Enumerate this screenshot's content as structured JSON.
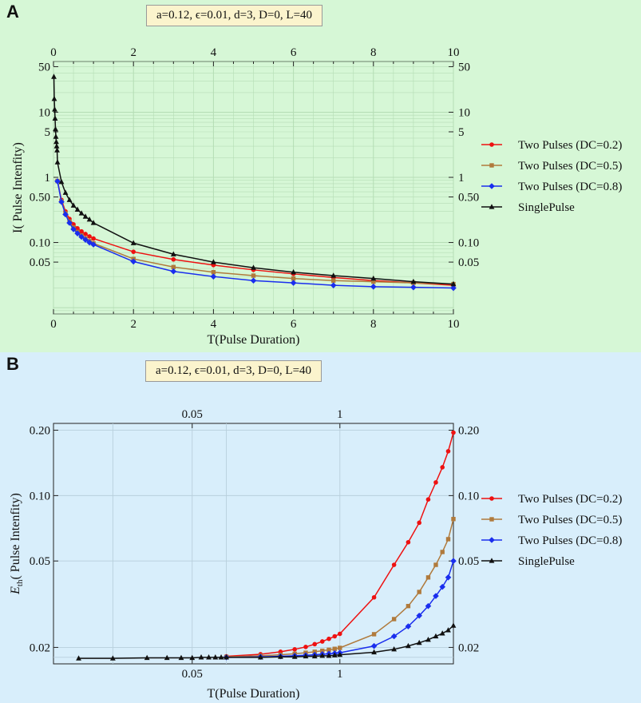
{
  "colors": {
    "red": "#ee1111",
    "brown": "#b07a3c",
    "blue": "#1a2eee",
    "black": "#111111",
    "bg_a": "#d6f7d6",
    "bg_b": "#d8eefb",
    "param_bg": "#fbf4cd"
  },
  "chart_data": [
    {
      "panel": "A",
      "type": "line",
      "params_label": "a=0.12, ϵ=0.01, d=3, D=0, L=40",
      "xlabel": "T(Pulse Duration)",
      "ylabel": "I( Pulse Intenfity)",
      "xscale": "linear",
      "yscale": "log",
      "xlim": [
        0,
        10
      ],
      "ylim": [
        0.008,
        60
      ],
      "xticks": [
        0,
        2,
        4,
        6,
        8,
        10
      ],
      "yticks": [
        0.05,
        0.1,
        0.5,
        1,
        5,
        10,
        50
      ],
      "ytick_labels": [
        "0.05",
        "0.10",
        "0.50",
        "1",
        "5",
        "10",
        "50"
      ],
      "grid": true,
      "legend_position": "right",
      "series": [
        {
          "name": "Two Pulses (DC=0.2)",
          "color_key": "red",
          "marker": "circle",
          "x": [
            0.1,
            0.2,
            0.3,
            0.4,
            0.5,
            0.6,
            0.7,
            0.8,
            0.9,
            1,
            2,
            3,
            4,
            5,
            6,
            7,
            8,
            9,
            10
          ],
          "y": [
            0.88,
            0.45,
            0.3,
            0.23,
            0.19,
            0.165,
            0.148,
            0.135,
            0.124,
            0.115,
            0.072,
            0.055,
            0.045,
            0.038,
            0.033,
            0.029,
            0.026,
            0.024,
            0.022
          ]
        },
        {
          "name": "Two Pulses (DC=0.5)",
          "color_key": "brown",
          "marker": "square",
          "x": [
            0.1,
            0.2,
            0.3,
            0.4,
            0.5,
            0.6,
            0.7,
            0.8,
            0.9,
            1,
            2,
            3,
            4,
            5,
            6,
            7,
            8,
            9,
            10
          ],
          "y": [
            0.88,
            0.43,
            0.28,
            0.21,
            0.17,
            0.145,
            0.128,
            0.115,
            0.105,
            0.097,
            0.056,
            0.042,
            0.035,
            0.031,
            0.028,
            0.026,
            0.025,
            0.024,
            0.023
          ]
        },
        {
          "name": "Two Pulses (DC=0.8)",
          "color_key": "blue",
          "marker": "diamond",
          "x": [
            0.1,
            0.2,
            0.3,
            0.4,
            0.5,
            0.6,
            0.7,
            0.8,
            0.9,
            1,
            2,
            3,
            4,
            5,
            6,
            7,
            8,
            9,
            10
          ],
          "y": [
            0.87,
            0.42,
            0.27,
            0.2,
            0.16,
            0.138,
            0.122,
            0.11,
            0.1,
            0.093,
            0.051,
            0.036,
            0.03,
            0.026,
            0.024,
            0.022,
            0.021,
            0.0205,
            0.02
          ]
        },
        {
          "name": "SinglePulse",
          "color_key": "black",
          "marker": "triangle",
          "x": [
            0.01,
            0.02,
            0.03,
            0.04,
            0.05,
            0.06,
            0.07,
            0.08,
            0.09,
            0.1,
            0.2,
            0.3,
            0.4,
            0.5,
            0.6,
            0.7,
            0.8,
            0.9,
            1,
            2,
            3,
            4,
            5,
            6,
            7,
            8,
            9,
            10
          ],
          "y": [
            35,
            16,
            11,
            8,
            5.5,
            4.2,
            3.5,
            3,
            2.6,
            1.7,
            0.85,
            0.58,
            0.45,
            0.37,
            0.32,
            0.28,
            0.25,
            0.225,
            0.2,
            0.098,
            0.066,
            0.05,
            0.041,
            0.035,
            0.031,
            0.028,
            0.025,
            0.023
          ]
        }
      ]
    },
    {
      "panel": "B",
      "type": "line",
      "params_label": "a=0.12, ϵ=0.01, d=3, D=0, L=40",
      "xlabel": "T(Pulse Duration)",
      "ylabel_main": "E",
      "ylabel_sub": "th",
      "ylabel_rest": "( Pulse Intenfity)",
      "xscale": "log",
      "yscale": "log",
      "xlim": [
        0.003,
        10
      ],
      "ylim": [
        0.0168,
        0.215
      ],
      "xticks": [
        0.05,
        1
      ],
      "xtick_labels": [
        "0.05",
        "1"
      ],
      "xminor_grid": [
        0.01,
        0.1
      ],
      "yticks": [
        0.02,
        0.05,
        0.1,
        0.2
      ],
      "ytick_labels": [
        "0.02",
        "0.05",
        "0.10",
        "0.20"
      ],
      "grid": true,
      "legend_position": "right",
      "series": [
        {
          "name": "Two Pulses (DC=0.2)",
          "color_key": "red",
          "marker": "circle",
          "x": [
            0.1,
            0.2,
            0.3,
            0.4,
            0.5,
            0.6,
            0.7,
            0.8,
            0.9,
            1,
            2,
            3,
            4,
            5,
            6,
            7,
            8,
            9,
            10
          ],
          "y": [
            0.0182,
            0.0186,
            0.0191,
            0.0196,
            0.0201,
            0.0207,
            0.0213,
            0.0219,
            0.0225,
            0.0231,
            0.034,
            0.048,
            0.061,
            0.075,
            0.096,
            0.115,
            0.135,
            0.16,
            0.195
          ]
        },
        {
          "name": "Two Pulses (DC=0.5)",
          "color_key": "brown",
          "marker": "square",
          "x": [
            0.1,
            0.2,
            0.3,
            0.4,
            0.5,
            0.6,
            0.7,
            0.8,
            0.9,
            1,
            2,
            3,
            4,
            5,
            6,
            7,
            8,
            9,
            10
          ],
          "y": [
            0.0181,
            0.0183,
            0.0185,
            0.0187,
            0.0189,
            0.0191,
            0.0193,
            0.0195,
            0.0197,
            0.0199,
            0.023,
            0.027,
            0.031,
            0.036,
            0.042,
            0.048,
            0.055,
            0.063,
            0.078
          ]
        },
        {
          "name": "Two Pulses (DC=0.8)",
          "color_key": "blue",
          "marker": "diamond",
          "x": [
            0.1,
            0.2,
            0.3,
            0.4,
            0.5,
            0.6,
            0.7,
            0.8,
            0.9,
            1,
            2,
            3,
            4,
            5,
            6,
            7,
            8,
            9,
            10
          ],
          "y": [
            0.018,
            0.0181,
            0.0182,
            0.0183,
            0.0184,
            0.0185,
            0.0186,
            0.0187,
            0.0188,
            0.0189,
            0.0203,
            0.0225,
            0.025,
            0.028,
            0.031,
            0.0345,
            0.038,
            0.042,
            0.05
          ]
        },
        {
          "name": "SinglePulse",
          "color_key": "black",
          "marker": "triangle",
          "x": [
            0.005,
            0.01,
            0.02,
            0.03,
            0.04,
            0.05,
            0.06,
            0.07,
            0.08,
            0.09,
            0.1,
            0.2,
            0.3,
            0.4,
            0.5,
            0.6,
            0.7,
            0.8,
            0.9,
            1,
            2,
            3,
            4,
            5,
            6,
            7,
            8,
            9,
            10
          ],
          "y": [
            0.0178,
            0.0178,
            0.0179,
            0.0179,
            0.0179,
            0.0179,
            0.018,
            0.018,
            0.018,
            0.018,
            0.018,
            0.018,
            0.0181,
            0.0181,
            0.0182,
            0.0182,
            0.0183,
            0.0183,
            0.0184,
            0.0185,
            0.019,
            0.0196,
            0.0203,
            0.021,
            0.0217,
            0.0225,
            0.0232,
            0.024,
            0.0252
          ]
        }
      ]
    }
  ]
}
